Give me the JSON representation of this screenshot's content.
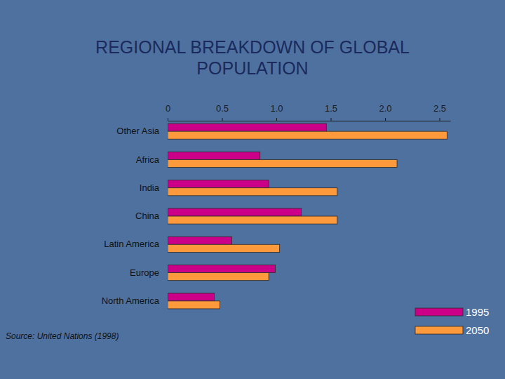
{
  "chart_data": {
    "type": "bar",
    "orientation": "horizontal",
    "title": "REGIONAL BREAKDOWN OF GLOBAL POPULATION",
    "annotations": [
      "Source: United Nations (1998)"
    ],
    "categories": [
      "Other Asia",
      "Africa",
      "India",
      "China",
      "Latin America",
      "Europe",
      "North America"
    ],
    "series": [
      {
        "name": "1995",
        "color": "#cc0088",
        "values": [
          1.46,
          0.85,
          0.93,
          1.23,
          0.59,
          0.99,
          0.43
        ]
      },
      {
        "name": "2050",
        "color": "#ff9a3c",
        "values": [
          2.57,
          2.11,
          1.56,
          1.56,
          1.03,
          0.93,
          0.48
        ]
      }
    ],
    "xlim": [
      0,
      2.6
    ],
    "xticks": [
      0,
      0.5,
      {
        "value": 1,
        "label": "1.0"
      },
      1.5,
      {
        "value": 2,
        "label": "2.0"
      },
      2.5
    ],
    "legend": "bottom-right",
    "grid": false
  }
}
